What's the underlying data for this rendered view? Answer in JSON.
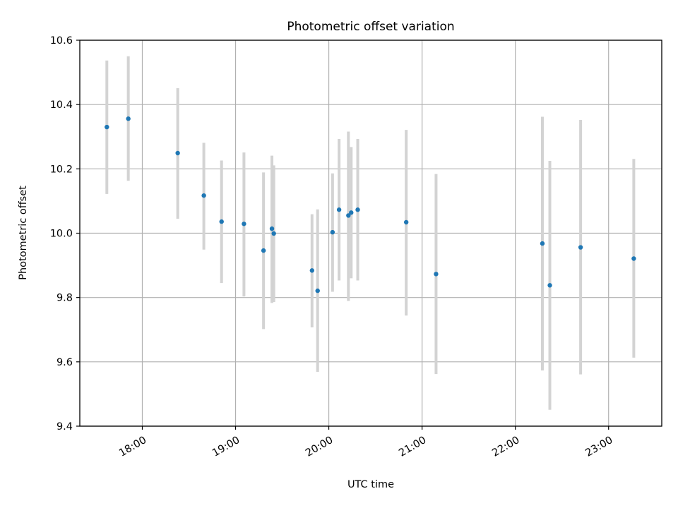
{
  "chart_data": {
    "type": "scatter",
    "title": "Photometric offset variation",
    "xlabel": "UTC time",
    "ylabel": "Photometric offset",
    "xlim": [
      17.33,
      23.57
    ],
    "ylim": [
      9.4,
      10.6
    ],
    "grid": true,
    "x_ticks": [
      18,
      19,
      20,
      21,
      22,
      23
    ],
    "x_tick_labels": [
      "18:00",
      "19:00",
      "20:00",
      "21:00",
      "22:00",
      "23:00"
    ],
    "y_ticks": [
      9.4,
      9.6,
      9.8,
      10.0,
      10.2,
      10.4,
      10.6
    ],
    "y_tick_labels": [
      "9.4",
      "9.6",
      "9.8",
      "10.0",
      "10.2",
      "10.4",
      "10.6"
    ],
    "marker_color": "#1f77b4",
    "errorbar_color": "#d3d3d3",
    "points": [
      {
        "x": 17.62,
        "y": 10.33,
        "low": 10.122,
        "high": 10.537
      },
      {
        "x": 17.85,
        "y": 10.356,
        "low": 10.163,
        "high": 10.55
      },
      {
        "x": 18.38,
        "y": 10.249,
        "low": 10.045,
        "high": 10.451
      },
      {
        "x": 18.66,
        "y": 10.117,
        "low": 9.949,
        "high": 10.281
      },
      {
        "x": 18.85,
        "y": 10.036,
        "low": 9.845,
        "high": 10.226
      },
      {
        "x": 19.09,
        "y": 10.029,
        "low": 9.803,
        "high": 10.251
      },
      {
        "x": 19.3,
        "y": 9.946,
        "low": 9.702,
        "high": 10.189
      },
      {
        "x": 19.39,
        "y": 10.014,
        "low": 9.783,
        "high": 10.241
      },
      {
        "x": 19.41,
        "y": 9.999,
        "low": 9.786,
        "high": 10.211
      },
      {
        "x": 19.82,
        "y": 9.884,
        "low": 9.707,
        "high": 10.059
      },
      {
        "x": 19.88,
        "y": 9.821,
        "low": 9.569,
        "high": 10.074
      },
      {
        "x": 20.04,
        "y": 10.003,
        "low": 9.818,
        "high": 10.186
      },
      {
        "x": 20.11,
        "y": 10.073,
        "low": 9.853,
        "high": 10.293
      },
      {
        "x": 20.21,
        "y": 10.055,
        "low": 9.789,
        "high": 10.316
      },
      {
        "x": 20.24,
        "y": 10.064,
        "low": 9.86,
        "high": 10.268
      },
      {
        "x": 20.31,
        "y": 10.073,
        "low": 9.853,
        "high": 10.293
      },
      {
        "x": 20.83,
        "y": 10.034,
        "low": 9.744,
        "high": 10.321
      },
      {
        "x": 21.15,
        "y": 9.873,
        "low": 9.562,
        "high": 10.184
      },
      {
        "x": 22.29,
        "y": 9.968,
        "low": 9.573,
        "high": 10.362
      },
      {
        "x": 22.37,
        "y": 9.838,
        "low": 9.451,
        "high": 10.225
      },
      {
        "x": 22.7,
        "y": 9.956,
        "low": 9.561,
        "high": 10.352
      },
      {
        "x": 23.27,
        "y": 9.921,
        "low": 9.613,
        "high": 10.231
      }
    ]
  }
}
